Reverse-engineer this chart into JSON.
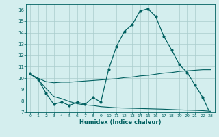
{
  "xlabel": "Humidex (Indice chaleur)",
  "x": [
    0,
    1,
    2,
    3,
    4,
    5,
    6,
    7,
    8,
    9,
    10,
    11,
    12,
    13,
    14,
    15,
    16,
    17,
    18,
    19,
    20,
    21,
    22,
    23
  ],
  "line1": [
    10.4,
    9.9,
    8.7,
    7.7,
    7.9,
    7.6,
    7.9,
    7.7,
    8.3,
    7.9,
    10.8,
    12.8,
    14.1,
    14.7,
    15.9,
    16.1,
    15.4,
    13.7,
    12.5,
    11.2,
    10.5,
    9.4,
    8.3,
    6.8
  ],
  "line2": [
    10.35,
    10.0,
    9.7,
    9.6,
    9.65,
    9.65,
    9.7,
    9.75,
    9.8,
    9.85,
    9.9,
    9.95,
    10.05,
    10.1,
    10.2,
    10.25,
    10.35,
    10.45,
    10.5,
    10.6,
    10.65,
    10.7,
    10.75,
    10.75
  ],
  "line3": [
    10.35,
    9.9,
    9.1,
    8.4,
    8.2,
    7.95,
    7.75,
    7.65,
    7.6,
    7.5,
    7.45,
    7.4,
    7.38,
    7.36,
    7.34,
    7.32,
    7.3,
    7.28,
    7.25,
    7.22,
    7.2,
    7.18,
    7.15,
    7.1
  ],
  "line_color": "#006060",
  "bg_color": "#d4eeee",
  "grid_color": "#aacccc",
  "ylim": [
    7,
    16.5
  ],
  "xlim": [
    -0.5,
    23.5
  ],
  "yticks": [
    7,
    8,
    9,
    10,
    11,
    12,
    13,
    14,
    15,
    16
  ],
  "xticks": [
    0,
    1,
    2,
    3,
    4,
    5,
    6,
    7,
    8,
    9,
    10,
    11,
    12,
    13,
    14,
    15,
    16,
    17,
    18,
    19,
    20,
    21,
    22,
    23
  ]
}
